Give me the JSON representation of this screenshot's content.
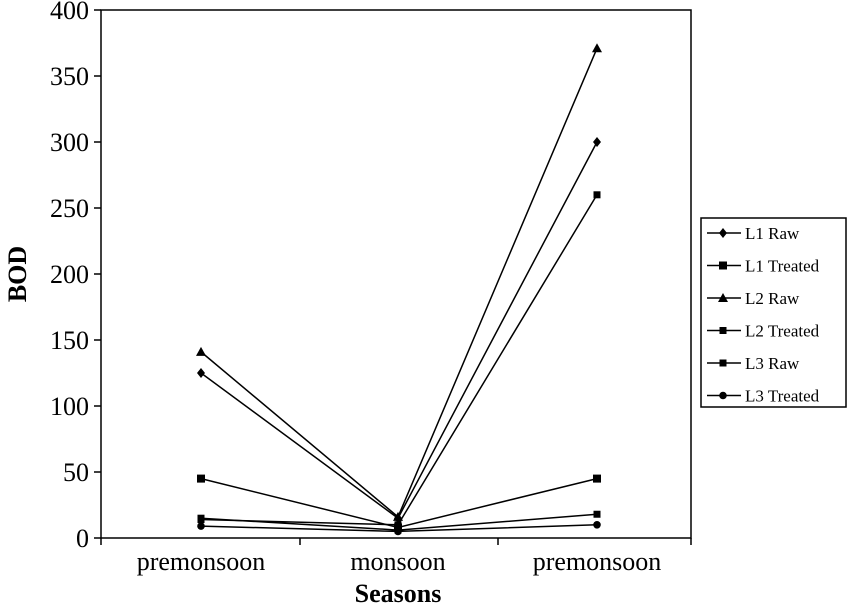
{
  "chart_data": {
    "type": "line",
    "xlabel": "Seasons",
    "ylabel": "BOD",
    "categories": [
      "premonsoon",
      "monsoon",
      "premonsoon"
    ],
    "ylim": [
      0,
      400
    ],
    "yticks": [
      0,
      50,
      100,
      150,
      200,
      250,
      300,
      350,
      400
    ],
    "grid": false,
    "legend_position": "right",
    "series": [
      {
        "name": "L1 Raw",
        "marker": "diamond",
        "values": [
          125,
          15,
          300
        ]
      },
      {
        "name": "L1 Treated",
        "marker": "square",
        "values": [
          45,
          8,
          45
        ]
      },
      {
        "name": "L2 Raw",
        "marker": "triangle",
        "values": [
          141,
          16,
          371
        ]
      },
      {
        "name": "L2 Treated",
        "marker": "square-small",
        "values": [
          15,
          6,
          18
        ]
      },
      {
        "name": "L3 Raw",
        "marker": "square-small",
        "values": [
          14,
          10,
          260
        ]
      },
      {
        "name": "L3 Treated",
        "marker": "circle",
        "values": [
          9,
          5,
          10
        ]
      }
    ]
  }
}
